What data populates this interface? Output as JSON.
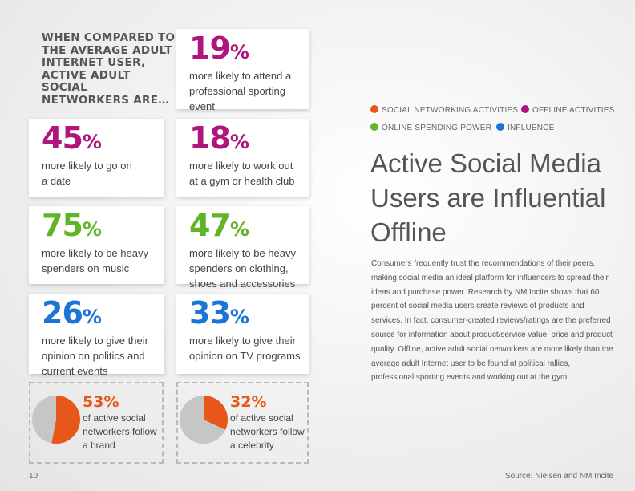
{
  "intro": "WHEN COMPARED TO THE AVERAGE ADULT INTERNET USER, ACTIVE ADULT SOCIAL NETWORKERS ARE…",
  "stats": [
    {
      "value": "19",
      "symbol": "%",
      "text": "more likely to attend a professional sporting event",
      "color": "#b0157c",
      "category": "offline"
    },
    {
      "value": "45",
      "symbol": "%",
      "text": "more likely to go on a date",
      "color": "#b0157c",
      "category": "offline"
    },
    {
      "value": "18",
      "symbol": "%",
      "text": "more likely to work out at a gym or health club",
      "color": "#b0157c",
      "category": "offline"
    },
    {
      "value": "75",
      "symbol": "%",
      "text": "more likely to be heavy spenders on music",
      "color": "#5fb526",
      "category": "online-spending"
    },
    {
      "value": "47",
      "symbol": "%",
      "text": "more likely to be heavy spenders on clothing, shoes and accessories",
      "color": "#5fb526",
      "category": "online-spending"
    },
    {
      "value": "26",
      "symbol": "%",
      "text": "more likely to give their opinion on politics and current events",
      "color": "#1a75d6",
      "category": "influence"
    },
    {
      "value": "33",
      "symbol": "%",
      "text": "more likely to give their opinion on TV programs",
      "color": "#1a75d6",
      "category": "influence"
    }
  ],
  "pies": [
    {
      "value": "53%",
      "fraction": 0.53,
      "text": "of active social networkers follow a brand"
    },
    {
      "value": "32%",
      "fraction": 0.32,
      "text": "of active social networkers follow a celebrity"
    }
  ],
  "pie_colors": {
    "filled": "#e8571a",
    "empty": "#c6c6c6"
  },
  "legend": [
    {
      "label": "SOCIAL NETWORKING ACTIVITIES",
      "color": "#e8571a"
    },
    {
      "label": "OFFLINE ACTIVITIES",
      "color": "#b0157c"
    },
    {
      "label": "ONLINE SPENDING POWER",
      "color": "#5fb526"
    },
    {
      "label": "INFLUENCE",
      "color": "#1a75d6"
    }
  ],
  "title": "Active Social Media Users are Influential Offline",
  "body": "Consumers frequently trust the recommendations of their peers, making social media an ideal platform for influencers to spread their ideas and purchase power. Research by NM Incite shows that 60 percent of social media users create reviews of products and services. In fact, consumer-created reviews/ratings are the preferred source for information about product/service value, price and product quality. Offline, active adult social networkers are more likely than the average adult Internet user to be found at political rallies, professional sporting events and working out at the gym.",
  "page_number": "10",
  "source": "Source: Nielsen and NM Incite"
}
